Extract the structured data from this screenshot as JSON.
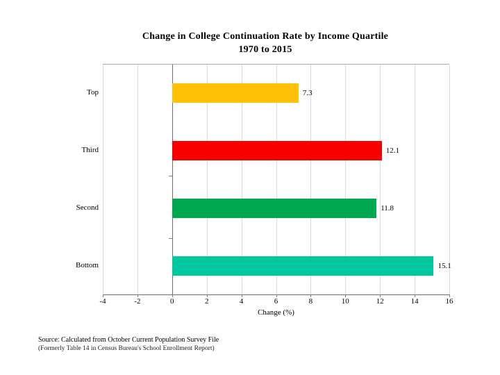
{
  "title": {
    "line1": "Change in College Continuation Rate by Income Quartile",
    "line2": "1970 to 2015"
  },
  "chart_data": {
    "type": "bar",
    "orientation": "horizontal",
    "title": "Change in College Continuation Rate by Income Quartile 1970 to 2015",
    "categories": [
      "Top",
      "Third",
      "Second",
      "Bottom"
    ],
    "values": [
      7.3,
      12.1,
      11.8,
      15.1
    ],
    "data_labels": [
      "7.3",
      "12.1",
      "11.8",
      "15.1"
    ],
    "bar_colors": [
      "#FFC107",
      "#F90000",
      "#00A84F",
      "#00C79E"
    ],
    "xlabel": "Change (%)",
    "xlim": [
      -4,
      16
    ],
    "x_ticks": [
      -4,
      -2,
      0,
      2,
      4,
      6,
      8,
      10,
      12,
      14,
      16
    ],
    "grid": "vertical light gray at every tick",
    "zero_line": true,
    "legend": "none"
  },
  "colors": {
    "gridline": "#dcdcdc",
    "zero_line": "#6e6e6e",
    "axis_line": "#6e6e6e",
    "plot_top_border": "#ababab",
    "tick": "#7f7f7f",
    "text": "#000000"
  },
  "source": {
    "line1": "Source: Calculated from October Current Population Survey File",
    "line2": "(Formerly Table 14 in Census Bureau's School Enrollment Report)"
  }
}
